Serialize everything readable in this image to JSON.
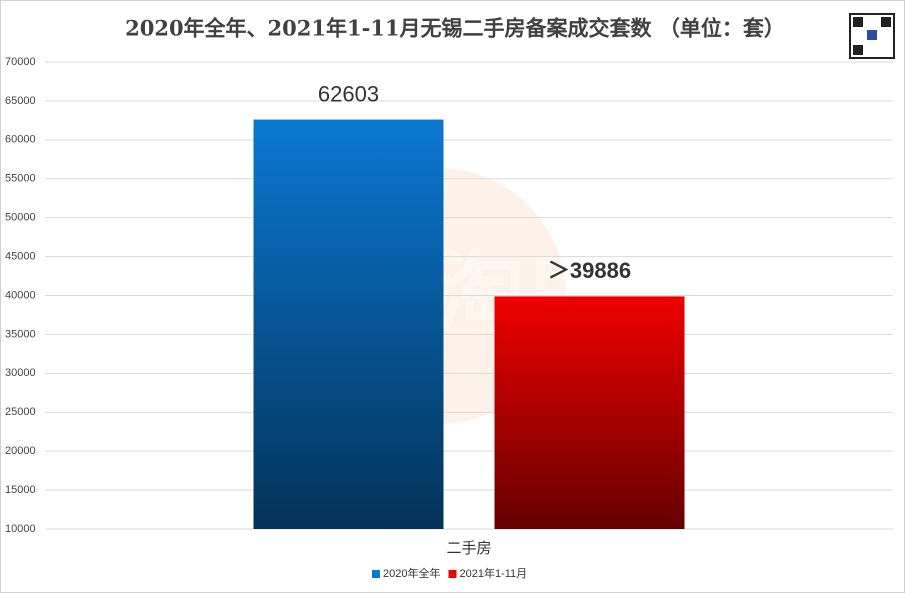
{
  "chart_data": {
    "type": "bar",
    "title": "2020年全年、2021年1-11月无锡二手房备案成交套数 （单位：套）",
    "watermark": "365淘房",
    "categories": [
      "二手房"
    ],
    "series": [
      {
        "name": "2020年全年",
        "color": "#0a78d2",
        "values": [
          62603
        ]
      },
      {
        "name": "2021年1-11月",
        "color": "#f00000",
        "values": [
          39886
        ],
        "value_labels": [
          "＞39886"
        ]
      }
    ],
    "ylim": [
      10000,
      70000
    ],
    "yticks": [
      10000,
      15000,
      20000,
      25000,
      30000,
      35000,
      40000,
      45000,
      50000,
      55000,
      60000,
      65000,
      70000
    ],
    "grid": true,
    "legend": "bottom"
  }
}
